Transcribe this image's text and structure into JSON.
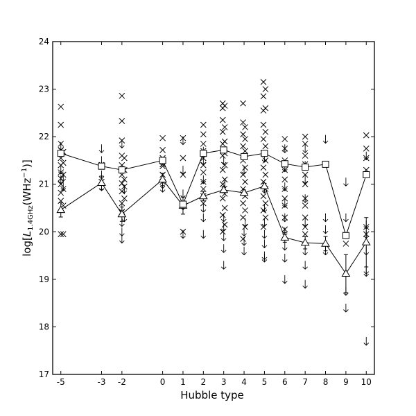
{
  "chart_data": {
    "type": "scatter",
    "title": "",
    "xlabel": "Hubble type",
    "ylabel": "log[L1.4GHz(WHz-1)]",
    "xlim": [
      -5.4,
      10.4
    ],
    "ylim": [
      17,
      24
    ],
    "xticks": [
      -5,
      -3,
      -2,
      0,
      1,
      2,
      3,
      4,
      5,
      6,
      7,
      8,
      9,
      10
    ],
    "xtick_labels": [
      "-5",
      "-3",
      "-2",
      "0",
      "1",
      "2",
      "3",
      "4",
      "5",
      "6",
      "7",
      "8",
      "9",
      "10"
    ],
    "yticks": [
      17,
      18,
      19,
      20,
      21,
      22,
      23,
      24
    ],
    "ytick_labels": [
      "17",
      "18",
      "19",
      "20",
      "21",
      "22",
      "23",
      "24"
    ],
    "grid": false,
    "legend": "none",
    "series": [
      {
        "marker": "square",
        "x": [
          -5,
          -3,
          -2,
          0,
          1,
          2,
          3,
          4,
          5,
          6,
          7,
          8,
          9,
          10
        ],
        "y": [
          21.65,
          21.38,
          21.3,
          21.5,
          20.58,
          21.65,
          21.72,
          21.58,
          21.65,
          21.43,
          21.36,
          21.42,
          19.92,
          21.2
        ]
      },
      {
        "marker": "triangle",
        "x": [
          -5,
          -3,
          -2,
          0,
          1,
          2,
          3,
          4,
          5,
          6,
          7,
          8,
          9,
          10
        ],
        "y": [
          20.46,
          21.03,
          20.37,
          21.1,
          20.55,
          20.75,
          20.88,
          20.82,
          20.96,
          19.88,
          19.77,
          19.75,
          19.12,
          19.78
        ],
        "err": [
          0.15,
          0.14,
          0.15,
          0.13,
          0.18,
          0.1,
          0.06,
          0.06,
          0.06,
          0.1,
          0.13,
          0.15,
          0.4,
          0.52
        ]
      },
      {
        "marker": "x",
        "points": [
          [
            -5,
            22.63
          ],
          [
            -5,
            22.25
          ],
          [
            -5,
            21.85
          ],
          [
            -5,
            21.72
          ],
          [
            -5,
            21.55
          ],
          [
            -5,
            21.4
          ],
          [
            -5,
            21.25
          ],
          [
            -5,
            21.12
          ],
          [
            -5,
            21.0
          ],
          [
            -5,
            20.82
          ],
          [
            -5,
            20.65
          ],
          [
            -5,
            19.95
          ],
          [
            -4.88,
            21.68
          ],
          [
            -4.88,
            21.45
          ],
          [
            -4.88,
            21.2
          ],
          [
            -4.88,
            20.9
          ],
          [
            -4.88,
            20.55
          ],
          [
            -4.88,
            19.95
          ],
          [
            -3,
            21.4
          ],
          [
            -3,
            21.05
          ],
          [
            -2,
            22.86
          ],
          [
            -2,
            22.33
          ],
          [
            -2,
            21.92
          ],
          [
            -2,
            21.6
          ],
          [
            -2,
            21.4
          ],
          [
            -2,
            21.2
          ],
          [
            -2,
            21.02
          ],
          [
            -2,
            20.85
          ],
          [
            -2,
            20.6
          ],
          [
            -2,
            20.42
          ],
          [
            -1.88,
            21.55
          ],
          [
            -1.88,
            21.3
          ],
          [
            -1.88,
            21.1
          ],
          [
            -1.88,
            20.95
          ],
          [
            -1.88,
            20.7
          ],
          [
            0,
            21.97
          ],
          [
            0,
            21.72
          ],
          [
            0,
            21.55
          ],
          [
            0,
            21.42
          ],
          [
            0,
            21.38
          ],
          [
            0,
            21.2
          ],
          [
            0,
            21.05
          ],
          [
            1,
            21.97
          ],
          [
            1,
            21.55
          ],
          [
            1,
            21.2
          ],
          [
            1,
            20.58
          ],
          [
            1,
            20.0
          ],
          [
            2,
            22.25
          ],
          [
            2,
            22.05
          ],
          [
            2,
            21.85
          ],
          [
            2,
            21.7
          ],
          [
            2,
            21.55
          ],
          [
            2,
            21.4
          ],
          [
            2,
            21.25
          ],
          [
            2,
            21.05
          ],
          [
            2,
            20.9
          ],
          [
            2,
            20.75
          ],
          [
            2,
            20.6
          ],
          [
            2.95,
            22.7
          ],
          [
            2.95,
            22.6
          ],
          [
            2.95,
            22.35
          ],
          [
            2.95,
            22.1
          ],
          [
            2.95,
            21.85
          ],
          [
            2.95,
            21.6
          ],
          [
            2.95,
            21.3
          ],
          [
            2.95,
            21.0
          ],
          [
            2.95,
            20.7
          ],
          [
            2.95,
            20.35
          ],
          [
            2.95,
            20.0
          ],
          [
            3.05,
            22.65
          ],
          [
            3.05,
            22.2
          ],
          [
            3.05,
            21.9
          ],
          [
            3.05,
            21.65
          ],
          [
            3.05,
            21.4
          ],
          [
            3.05,
            21.1
          ],
          [
            3.05,
            20.8
          ],
          [
            3.05,
            20.5
          ],
          [
            3.05,
            20.15
          ],
          [
            3.95,
            22.7
          ],
          [
            3.95,
            22.3
          ],
          [
            3.95,
            22.05
          ],
          [
            3.95,
            21.8
          ],
          [
            3.95,
            21.5
          ],
          [
            3.95,
            21.2
          ],
          [
            3.95,
            20.9
          ],
          [
            3.95,
            20.6
          ],
          [
            3.95,
            20.3
          ],
          [
            3.95,
            19.85
          ],
          [
            4.05,
            22.2
          ],
          [
            4.05,
            21.95
          ],
          [
            4.05,
            21.7
          ],
          [
            4.05,
            21.35
          ],
          [
            4.05,
            21.05
          ],
          [
            4.05,
            20.75
          ],
          [
            4.05,
            20.45
          ],
          [
            4.05,
            20.1
          ],
          [
            4.95,
            23.15
          ],
          [
            4.95,
            22.85
          ],
          [
            4.95,
            22.55
          ],
          [
            4.95,
            22.25
          ],
          [
            4.95,
            21.95
          ],
          [
            4.95,
            21.65
          ],
          [
            4.95,
            21.35
          ],
          [
            4.95,
            21.05
          ],
          [
            4.95,
            20.75
          ],
          [
            4.95,
            20.45
          ],
          [
            4.95,
            20.1
          ],
          [
            5.05,
            23.0
          ],
          [
            5.05,
            22.6
          ],
          [
            5.05,
            22.1
          ],
          [
            5.05,
            21.8
          ],
          [
            5.05,
            21.5
          ],
          [
            5.05,
            21.2
          ],
          [
            5.05,
            20.9
          ],
          [
            5.05,
            20.6
          ],
          [
            5.05,
            20.3
          ],
          [
            6,
            21.95
          ],
          [
            6,
            21.75
          ],
          [
            6,
            21.5
          ],
          [
            6,
            21.3
          ],
          [
            6,
            21.1
          ],
          [
            6,
            20.9
          ],
          [
            6,
            20.7
          ],
          [
            6,
            20.55
          ],
          [
            6,
            20.3
          ],
          [
            6,
            20.05
          ],
          [
            7,
            22.0
          ],
          [
            7,
            21.85
          ],
          [
            7,
            21.6
          ],
          [
            7,
            21.42
          ],
          [
            7,
            21.2
          ],
          [
            7,
            21.0
          ],
          [
            7,
            20.7
          ],
          [
            7,
            20.55
          ],
          [
            7,
            20.3
          ],
          [
            7,
            20.1
          ],
          [
            7,
            19.95
          ],
          [
            9,
            19.75
          ],
          [
            10,
            22.03
          ],
          [
            10,
            21.75
          ],
          [
            10,
            21.55
          ],
          [
            10,
            21.3
          ],
          [
            10,
            20.1
          ],
          [
            10,
            19.95
          ]
        ]
      },
      {
        "marker": "arrow-down",
        "points": [
          [
            -5,
            21.8
          ],
          [
            -5,
            21.3
          ],
          [
            -5,
            21.1
          ],
          [
            -4.88,
            21.15
          ],
          [
            -4.88,
            20.95
          ],
          [
            -3,
            21.75
          ],
          [
            -3,
            21.5
          ],
          [
            -3,
            21.2
          ],
          [
            -3,
            20.95
          ],
          [
            -2,
            21.85
          ],
          [
            -2,
            20.5
          ],
          [
            -2,
            20.2
          ],
          [
            -2,
            20.0
          ],
          [
            -2,
            19.85
          ],
          [
            -1.88,
            20.9
          ],
          [
            -1.88,
            20.3
          ],
          [
            0,
            21.0
          ],
          [
            0,
            20.92
          ],
          [
            1,
            21.92
          ],
          [
            1,
            21.3
          ],
          [
            1,
            20.8
          ],
          [
            1,
            20.55
          ],
          [
            1,
            19.95
          ],
          [
            2,
            21.7
          ],
          [
            2,
            21.5
          ],
          [
            2,
            21.1
          ],
          [
            2,
            20.5
          ],
          [
            2,
            20.3
          ],
          [
            2,
            19.95
          ],
          [
            3,
            21.5
          ],
          [
            3,
            20.3
          ],
          [
            3,
            20.1
          ],
          [
            3,
            19.9
          ],
          [
            3,
            19.65
          ],
          [
            3,
            19.3
          ],
          [
            3.05,
            21.0
          ],
          [
            4,
            21.3
          ],
          [
            4,
            20.0
          ],
          [
            4,
            19.8
          ],
          [
            4,
            19.6
          ],
          [
            4.05,
            20.2
          ],
          [
            5,
            21.55
          ],
          [
            5,
            20.9
          ],
          [
            5,
            20.5
          ],
          [
            5,
            20.2
          ],
          [
            5,
            19.95
          ],
          [
            5,
            19.75
          ],
          [
            5,
            19.5
          ],
          [
            5,
            19.45
          ],
          [
            6,
            21.75
          ],
          [
            6,
            21.35
          ],
          [
            6,
            20.95
          ],
          [
            6,
            20.6
          ],
          [
            6,
            20.3
          ],
          [
            6,
            20.0
          ],
          [
            6,
            19.7
          ],
          [
            6,
            19.45
          ],
          [
            6,
            19.0
          ],
          [
            7,
            21.75
          ],
          [
            7,
            21.4
          ],
          [
            7,
            21.1
          ],
          [
            7,
            20.7
          ],
          [
            7,
            20.2
          ],
          [
            7,
            19.6
          ],
          [
            7,
            19.3
          ],
          [
            7,
            18.9
          ],
          [
            8,
            21.95
          ],
          [
            8,
            20.3
          ],
          [
            8,
            20.05
          ],
          [
            8,
            19.6
          ],
          [
            9,
            21.05
          ],
          [
            9,
            20.3
          ],
          [
            9,
            18.75
          ],
          [
            9,
            18.4
          ],
          [
            10,
            21.6
          ],
          [
            10,
            20.15
          ],
          [
            10,
            19.95
          ],
          [
            10,
            19.6
          ],
          [
            10,
            19.2
          ],
          [
            10,
            19.15
          ],
          [
            10,
            17.7
          ]
        ]
      }
    ]
  }
}
